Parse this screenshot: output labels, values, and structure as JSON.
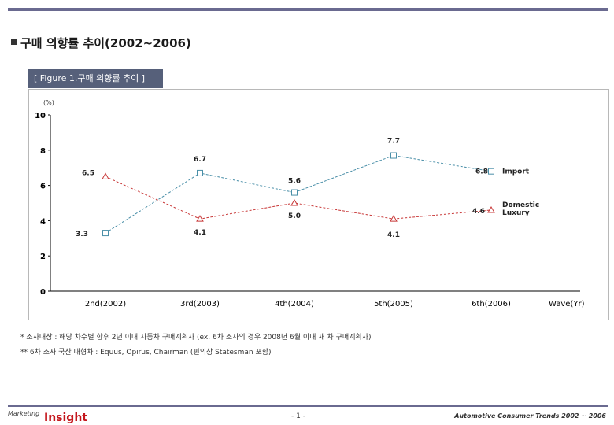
{
  "heading": "구매 의향률 추이(2002~2006)",
  "figure_label": "[ Figure 1.구매 의향률 추이 ]",
  "notes": [
    "* 조사대상 : 해당 차수별 향후 2년 이내 자동차 구매계획자 (ex. 6차 조사의 경우 2008년 6월 이내 새 차 구매계획자)",
    "** 6차 조사 국산 대형차 : Equus, Opirus, Chairman (편의상 Statesman 포함)"
  ],
  "footer": {
    "logo_prefix": "Marketing",
    "logo_main": "Insight",
    "page": "- 1 -",
    "title": "Automotive Consumer Trends 2002 ~ 2006"
  },
  "colors": {
    "import": "#4a8fa8",
    "domestic_luxury": "#c83838",
    "bars": "#6a6a90",
    "figure_label_bg": "#56607a"
  },
  "chart_data": {
    "type": "line",
    "ylabel": "(%)",
    "xlabel": "Wave(Yr)",
    "ylim": [
      0,
      10
    ],
    "yticks": [
      "0",
      "2",
      "4",
      "6",
      "8",
      "10"
    ],
    "categories": [
      "2nd(2002)",
      "3rd(2003)",
      "4th(2004)",
      "5th(2005)",
      "6th(2006)"
    ],
    "grid": false,
    "series": [
      {
        "name": "Import",
        "values": [
          3.3,
          6.7,
          5.6,
          7.7,
          6.8
        ],
        "labels": [
          "3.3",
          "6.7",
          "5.6",
          "7.7",
          "6.8"
        ],
        "marker": "square"
      },
      {
        "name": "Domestic Luxury",
        "values": [
          6.5,
          4.1,
          5.0,
          4.1,
          4.6
        ],
        "labels": [
          "6.5",
          "4.1",
          "5.0",
          "4.1",
          "4.6"
        ],
        "marker": "triangle"
      }
    ]
  }
}
